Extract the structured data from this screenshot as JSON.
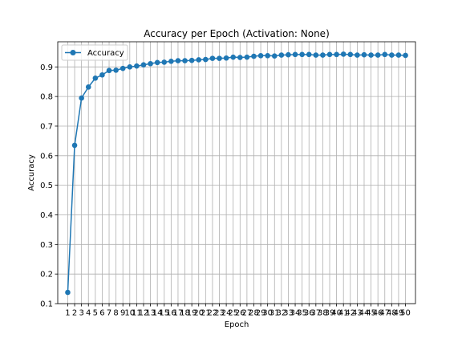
{
  "chart_data": {
    "type": "line",
    "title": "Accuracy per Epoch (Activation: None)",
    "xlabel": "Epoch",
    "ylabel": "Accuracy",
    "x": [
      1,
      2,
      3,
      4,
      5,
      6,
      7,
      8,
      9,
      10,
      11,
      12,
      13,
      14,
      15,
      16,
      17,
      18,
      19,
      20,
      21,
      22,
      23,
      24,
      25,
      26,
      27,
      28,
      29,
      30,
      31,
      32,
      33,
      34,
      35,
      36,
      37,
      38,
      39,
      40,
      41,
      42,
      43,
      44,
      45,
      46,
      47,
      48,
      49,
      50
    ],
    "x_tick_labels": [
      "1",
      "2",
      "3",
      "4",
      "5",
      "6",
      "7",
      "8",
      "9",
      "10",
      "11",
      "12",
      "13",
      "14",
      "15",
      "16",
      "17",
      "18",
      "19",
      "20",
      "21",
      "22",
      "23",
      "24",
      "25",
      "26",
      "27",
      "28",
      "29",
      "30",
      "31",
      "32",
      "33",
      "34",
      "35",
      "36",
      "37",
      "38",
      "39",
      "40",
      "41",
      "42",
      "43",
      "44",
      "45",
      "46",
      "47",
      "48",
      "49",
      "50"
    ],
    "y_ticks": [
      0.1,
      0.2,
      0.3,
      0.4,
      0.5,
      0.6,
      0.7,
      0.8,
      0.9
    ],
    "y_tick_labels": [
      "0.1",
      "0.2",
      "0.3",
      "0.4",
      "0.5",
      "0.6",
      "0.7",
      "0.8",
      "0.9"
    ],
    "xlim": [
      -0.45,
      51.45
    ],
    "ylim": [
      0.1,
      0.985
    ],
    "grid": true,
    "legend_position": "upper-left",
    "series": [
      {
        "name": "Accuracy",
        "color": "#1f77b4",
        "marker": "circle",
        "values": [
          0.138,
          0.635,
          0.795,
          0.832,
          0.862,
          0.873,
          0.888,
          0.889,
          0.895,
          0.9,
          0.903,
          0.907,
          0.911,
          0.915,
          0.916,
          0.919,
          0.921,
          0.921,
          0.922,
          0.924,
          0.925,
          0.929,
          0.929,
          0.93,
          0.933,
          0.932,
          0.933,
          0.936,
          0.938,
          0.938,
          0.937,
          0.94,
          0.941,
          0.942,
          0.942,
          0.942,
          0.94,
          0.94,
          0.942,
          0.942,
          0.943,
          0.942,
          0.94,
          0.941,
          0.94,
          0.94,
          0.942,
          0.94,
          0.94,
          0.939
        ]
      }
    ]
  }
}
